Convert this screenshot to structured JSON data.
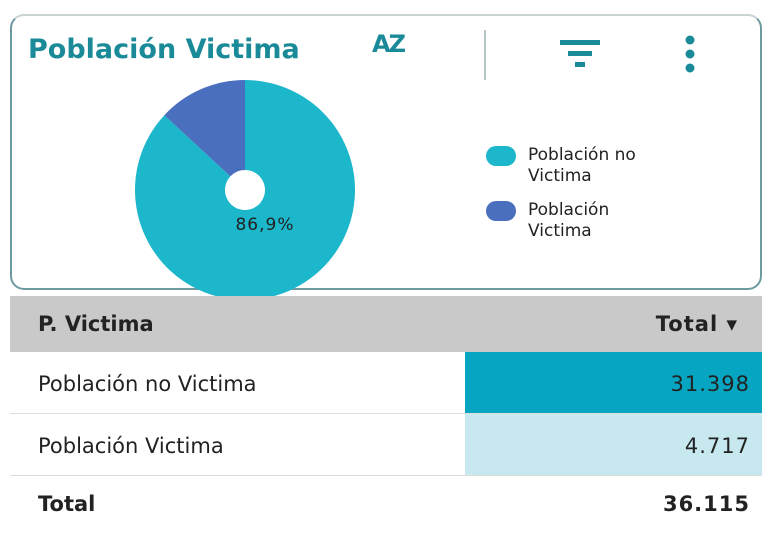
{
  "header": {
    "title": "Población Victima",
    "sort_label": "AZ"
  },
  "chart_data": {
    "type": "pie",
    "categories": [
      "Población no Victima",
      "Población Victima"
    ],
    "values": [
      86.9,
      13.1
    ],
    "value_labels": [
      "86,9%",
      null
    ],
    "colors": [
      "#1db7cc",
      "#4a6fbf"
    ],
    "donut": true
  },
  "table": {
    "columns": [
      "P. Victima",
      "Total"
    ],
    "rows": [
      [
        "Población no Victima",
        "31.398"
      ],
      [
        "Población Victima",
        "4.717"
      ]
    ],
    "total": [
      "Total",
      "36.115"
    ]
  }
}
